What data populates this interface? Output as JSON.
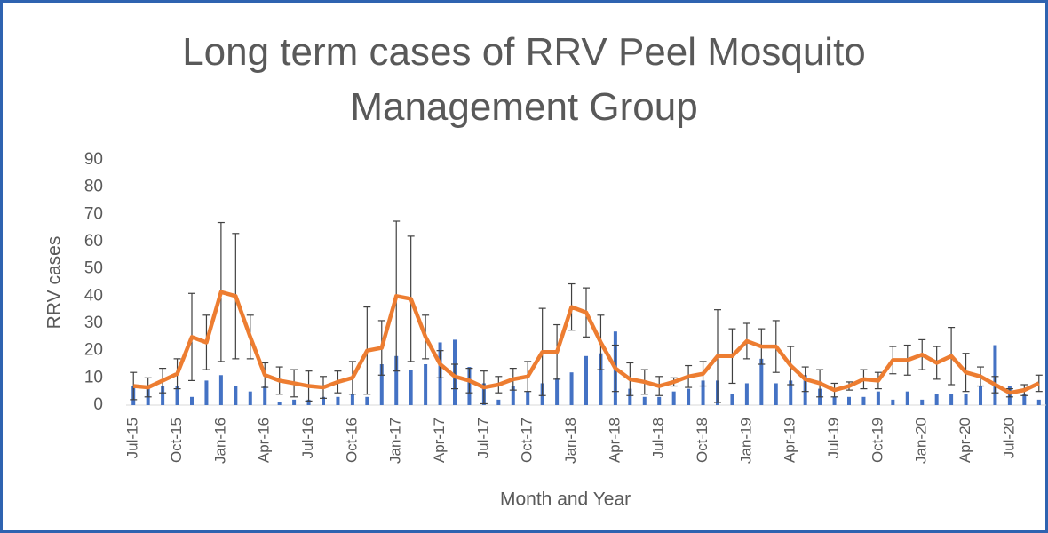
{
  "chart_data": {
    "type": "bar_line",
    "title": "Long term cases of RRV Peel Mosquito Management Group",
    "x_label": "Month and Year",
    "y_label": "RRV cases",
    "categories": [
      "Jul-15",
      null,
      null,
      "Oct-15",
      null,
      null,
      "Jan-16",
      null,
      null,
      "Apr-16",
      null,
      null,
      "Jul-16",
      null,
      null,
      "Oct-16",
      null,
      null,
      "Jan-17",
      null,
      null,
      "Apr-17",
      null,
      null,
      "Jul-17",
      null,
      null,
      "Oct-17",
      null,
      null,
      "Jan-18",
      null,
      null,
      "Apr-18",
      null,
      null,
      "Jul-18",
      null,
      null,
      "Oct-18",
      null,
      null,
      "Jan-19",
      null,
      null,
      "Apr-19",
      null,
      null,
      "Jul-19",
      null,
      null,
      "Oct-19",
      null,
      null,
      "Jan-20",
      null,
      null,
      "Apr-20",
      null,
      null,
      "Jul-20",
      null,
      null
    ],
    "series": [
      {
        "type": "bar",
        "color": "#4472c4",
        "values": [
          7,
          7,
          7,
          7,
          3,
          9,
          11,
          7,
          5,
          7,
          1,
          2,
          2,
          3,
          3,
          4,
          3,
          15,
          18,
          13,
          15,
          23,
          24,
          14,
          8,
          2,
          7,
          5,
          8,
          10,
          12,
          18,
          19,
          27,
          6,
          3,
          3,
          5,
          6,
          9,
          9,
          4,
          8,
          17,
          8,
          9,
          11,
          6,
          3,
          3,
          3,
          5,
          2,
          5,
          2,
          4,
          4,
          4,
          7,
          22,
          7,
          4,
          2
        ]
      },
      {
        "type": "line",
        "color": "#ed7d31",
        "error_color": "#404040",
        "values": [
          7,
          6.5,
          9,
          11.5,
          25,
          23,
          41.5,
          40,
          25,
          11,
          9,
          8,
          7,
          6.5,
          8.5,
          10,
          20,
          21,
          40,
          39,
          25,
          15,
          10.5,
          9,
          6.5,
          7.5,
          9.5,
          10.5,
          19.5,
          19.5,
          36,
          34,
          23,
          13.5,
          9.5,
          8.5,
          7,
          8.5,
          10.5,
          11.5,
          18,
          18,
          23.5,
          21.5,
          21.5,
          14.5,
          9.5,
          8,
          5.5,
          7,
          9.5,
          9,
          16.5,
          16.5,
          18.5,
          15.5,
          18,
          12,
          10.5,
          7.5,
          4.5,
          5.5,
          8
        ],
        "errors": [
          5,
          3.5,
          4.5,
          5.5,
          16,
          10,
          25.5,
          23,
          8,
          4.5,
          5,
          5,
          5.5,
          4,
          4,
          6,
          16,
          10,
          27.5,
          23,
          8,
          5,
          4.5,
          4.5,
          6,
          3,
          4,
          5.5,
          16,
          10,
          8.5,
          9,
          10,
          8.5,
          6,
          4.5,
          3.5,
          1.5,
          4,
          4.5,
          17,
          10,
          6.5,
          6.5,
          9.5,
          7,
          4.5,
          5,
          2.5,
          1.5,
          3.5,
          3,
          5,
          5.5,
          5.5,
          6,
          10.5,
          7,
          3.5,
          3,
          1.5,
          2,
          3
        ]
      }
    ],
    "ylim": [
      0,
      90
    ],
    "yticks": [
      0,
      10,
      20,
      30,
      40,
      50,
      60,
      70,
      80,
      90
    ],
    "grid": false
  }
}
